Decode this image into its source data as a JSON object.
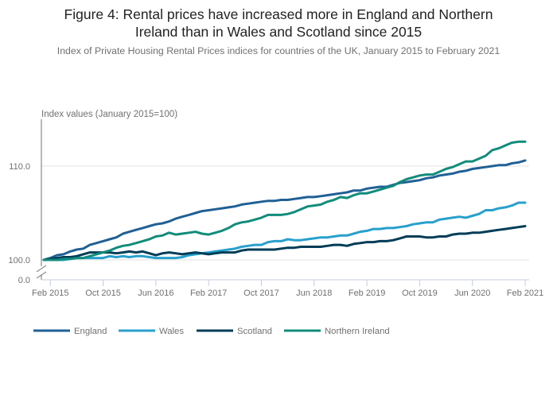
{
  "header": {
    "title_line1": "Figure 4: Rental prices have increased more in England and Northern",
    "title_line2": "Ireland than in Wales and Scotland since 2015",
    "subtitle": "Index of Private Housing Rental Prices indices for countries of the UK, January 2015 to February 2021"
  },
  "chart_data": {
    "type": "line",
    "title": "Figure 4: Rental prices have increased more in England and Northern Ireland than in Wales and Scotland since 2015",
    "subtitle": "Index of Private Housing Rental Prices indices for countries of the UK, January 2015 to February 2021",
    "xlabel": "",
    "ylabel": "Index values (January 2015=100)",
    "ylim": [
      100,
      115
    ],
    "y_axis_break": {
      "from": 0.0,
      "to": 100.0
    },
    "yticks": [
      0,
      100,
      110
    ],
    "ytick_labels": [
      "0.0",
      "100.0",
      "110.0"
    ],
    "xtick_labels": [
      "Feb 2015",
      "Oct 2015",
      "Jun 2016",
      "Feb 2017",
      "Oct 2017",
      "Jun 2018",
      "Feb 2019",
      "Oct 2019",
      "Jun 2020",
      "Feb 2021"
    ],
    "grid": "horizontal",
    "legend_position": "bottom",
    "x": [
      "Jan 2015",
      "Feb 2015",
      "Mar 2015",
      "Apr 2015",
      "May 2015",
      "Jun 2015",
      "Jul 2015",
      "Aug 2015",
      "Sep 2015",
      "Oct 2015",
      "Nov 2015",
      "Dec 2015",
      "Jan 2016",
      "Feb 2016",
      "Mar 2016",
      "Apr 2016",
      "May 2016",
      "Jun 2016",
      "Jul 2016",
      "Aug 2016",
      "Sep 2016",
      "Oct 2016",
      "Nov 2016",
      "Dec 2016",
      "Jan 2017",
      "Feb 2017",
      "Mar 2017",
      "Apr 2017",
      "May 2017",
      "Jun 2017",
      "Jul 2017",
      "Aug 2017",
      "Sep 2017",
      "Oct 2017",
      "Nov 2017",
      "Dec 2017",
      "Jan 2018",
      "Feb 2018",
      "Mar 2018",
      "Apr 2018",
      "May 2018",
      "Jun 2018",
      "Jul 2018",
      "Aug 2018",
      "Sep 2018",
      "Oct 2018",
      "Nov 2018",
      "Dec 2018",
      "Jan 2019",
      "Feb 2019",
      "Mar 2019",
      "Apr 2019",
      "May 2019",
      "Jun 2019",
      "Jul 2019",
      "Aug 2019",
      "Sep 2019",
      "Oct 2019",
      "Nov 2019",
      "Dec 2019",
      "Jan 2020",
      "Feb 2020",
      "Mar 2020",
      "Apr 2020",
      "May 2020",
      "Jun 2020",
      "Jul 2020",
      "Aug 2020",
      "Sep 2020",
      "Oct 2020",
      "Nov 2020",
      "Dec 2020",
      "Jan 2021",
      "Feb 2021"
    ],
    "series": [
      {
        "name": "England",
        "color": "#206095",
        "values": [
          100.0,
          100.2,
          100.5,
          100.6,
          100.9,
          101.1,
          101.2,
          101.6,
          101.8,
          102.0,
          102.2,
          102.4,
          102.8,
          103.0,
          103.2,
          103.4,
          103.6,
          103.8,
          103.9,
          104.1,
          104.4,
          104.6,
          104.8,
          105.0,
          105.2,
          105.3,
          105.4,
          105.5,
          105.6,
          105.7,
          105.9,
          106.0,
          106.1,
          106.2,
          106.3,
          106.3,
          106.4,
          106.4,
          106.5,
          106.6,
          106.7,
          106.7,
          106.8,
          106.9,
          107.0,
          107.1,
          107.2,
          107.4,
          107.4,
          107.6,
          107.7,
          107.8,
          107.8,
          108.0,
          108.2,
          108.3,
          108.4,
          108.5,
          108.7,
          108.8,
          109.0,
          109.1,
          109.2,
          109.4,
          109.5,
          109.7,
          109.8,
          109.9,
          110.0,
          110.1,
          110.1,
          110.3,
          110.4,
          110.6
        ]
      },
      {
        "name": "Wales",
        "color": "#27a0cc",
        "values": [
          100.0,
          100.0,
          100.0,
          100.0,
          100.1,
          100.2,
          100.2,
          100.2,
          100.2,
          100.2,
          100.4,
          100.3,
          100.4,
          100.3,
          100.4,
          100.4,
          100.3,
          100.2,
          100.2,
          100.2,
          100.2,
          100.3,
          100.5,
          100.6,
          100.7,
          100.8,
          100.9,
          101.0,
          101.1,
          101.2,
          101.4,
          101.5,
          101.6,
          101.6,
          101.9,
          102.0,
          102.0,
          102.2,
          102.1,
          102.1,
          102.2,
          102.3,
          102.4,
          102.4,
          102.5,
          102.6,
          102.6,
          102.8,
          103.0,
          103.1,
          103.3,
          103.3,
          103.4,
          103.4,
          103.5,
          103.6,
          103.8,
          103.9,
          104.0,
          104.0,
          104.3,
          104.4,
          104.5,
          104.6,
          104.5,
          104.7,
          104.9,
          105.3,
          105.3,
          105.5,
          105.6,
          105.8,
          106.1,
          106.1
        ]
      },
      {
        "name": "Scotland",
        "color": "#003c57",
        "values": [
          100.0,
          100.1,
          100.2,
          100.3,
          100.3,
          100.4,
          100.6,
          100.8,
          100.8,
          100.8,
          100.8,
          100.7,
          100.8,
          100.9,
          100.8,
          100.9,
          100.7,
          100.5,
          100.7,
          100.8,
          100.7,
          100.6,
          100.7,
          100.8,
          100.7,
          100.6,
          100.7,
          100.8,
          100.8,
          100.8,
          101.0,
          101.1,
          101.1,
          101.1,
          101.1,
          101.1,
          101.2,
          101.3,
          101.3,
          101.4,
          101.4,
          101.4,
          101.4,
          101.5,
          101.6,
          101.6,
          101.5,
          101.7,
          101.8,
          101.9,
          101.9,
          102.0,
          102.0,
          102.1,
          102.3,
          102.5,
          102.5,
          102.5,
          102.4,
          102.4,
          102.5,
          102.5,
          102.7,
          102.8,
          102.8,
          102.9,
          102.9,
          103.0,
          103.1,
          103.2,
          103.3,
          103.4,
          103.5,
          103.6
        ]
      },
      {
        "name": "Northern Ireland",
        "color": "#118c7b",
        "values": [
          100.0,
          100.0,
          100.0,
          100.1,
          100.1,
          100.2,
          100.2,
          100.4,
          100.6,
          100.8,
          101.0,
          101.3,
          101.5,
          101.6,
          101.8,
          102.0,
          102.2,
          102.5,
          102.6,
          102.9,
          102.7,
          102.8,
          102.9,
          103.0,
          102.8,
          102.7,
          102.9,
          103.1,
          103.4,
          103.8,
          104.0,
          104.1,
          104.3,
          104.5,
          104.8,
          104.8,
          104.8,
          104.9,
          105.1,
          105.4,
          105.7,
          105.8,
          105.9,
          106.2,
          106.4,
          106.7,
          106.6,
          106.9,
          107.1,
          107.1,
          107.3,
          107.5,
          107.7,
          107.9,
          108.3,
          108.6,
          108.8,
          109.0,
          109.1,
          109.1,
          109.4,
          109.7,
          109.9,
          110.2,
          110.5,
          110.5,
          110.8,
          111.1,
          111.7,
          111.9,
          112.2,
          112.5,
          112.6,
          112.6
        ]
      }
    ]
  }
}
